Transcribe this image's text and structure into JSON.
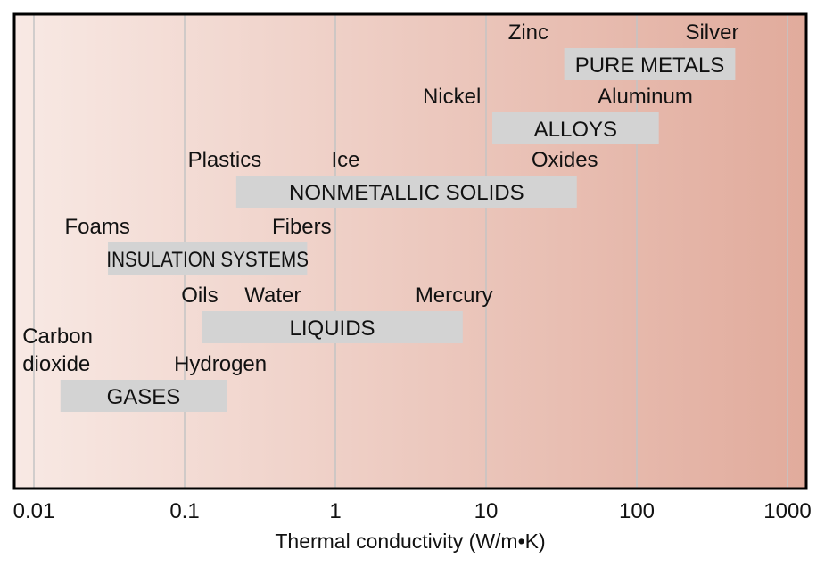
{
  "chart_data": {
    "type": "range-bar",
    "x_scale": "log",
    "xlim": [
      0.008,
      1300
    ],
    "xticks": [
      0.01,
      0.1,
      1,
      10,
      100,
      1000
    ],
    "xtick_labels": [
      "0.01",
      "0.1",
      "1",
      "10",
      "100",
      "1000"
    ],
    "xlabel": "Thermal conductivity (W/m•K)",
    "background": {
      "gradient_from": "#f8e9e4",
      "gradient_to": "#e1ab9c"
    },
    "bar_color": "#d3d3d3",
    "grid": true,
    "categories": [
      {
        "name": "PURE METALS",
        "range": [
          33,
          450
        ],
        "annotations": [
          {
            "text": "Zinc",
            "x": 14
          },
          {
            "text": "Silver",
            "x": 210
          }
        ]
      },
      {
        "name": "ALLOYS",
        "range": [
          11,
          140
        ],
        "annotations": [
          {
            "text": "Nickel",
            "x": 3.8
          },
          {
            "text": "Aluminum",
            "x": 55
          }
        ]
      },
      {
        "name": "NONMETALLIC SOLIDS",
        "range": [
          0.22,
          40
        ],
        "annotations": [
          {
            "text": "Plastics",
            "x": 0.105
          },
          {
            "text": "Ice",
            "x": 0.94
          },
          {
            "text": "Oxides",
            "x": 20
          }
        ]
      },
      {
        "name": "INSULATION SYSTEMS",
        "range": [
          0.031,
          0.65
        ],
        "annotations": [
          {
            "text": "Foams",
            "x": 0.016
          },
          {
            "text": "Fibers",
            "x": 0.38
          }
        ]
      },
      {
        "name": "LIQUIDS",
        "range": [
          0.13,
          7
        ],
        "annotations": [
          {
            "text": "Oils",
            "x": 0.095
          },
          {
            "text": "Water",
            "x": 0.25
          },
          {
            "text": "Mercury",
            "x": 3.4
          }
        ]
      },
      {
        "name": "GASES",
        "range": [
          0.015,
          0.19
        ],
        "annotations": [
          {
            "text": "Carbon",
            "x": 0.0084,
            "line": 1
          },
          {
            "text": "dioxide",
            "x": 0.0084
          },
          {
            "text": "Hydrogen",
            "x": 0.085
          }
        ]
      }
    ]
  }
}
